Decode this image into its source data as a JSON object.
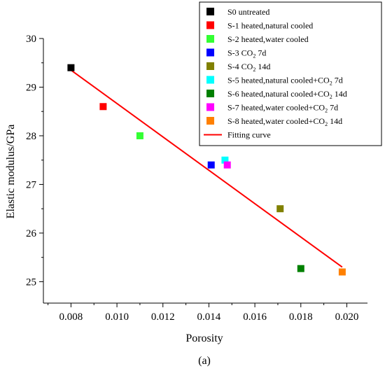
{
  "chart_data": {
    "type": "scatter",
    "xlabel": "Porosity",
    "ylabel": "Elastic modulus/GPa",
    "panel_label": "(a)",
    "xlim": [
      0.0068,
      0.0209
    ],
    "ylim": [
      24.56,
      30.0
    ],
    "xticks": [
      0.008,
      0.01,
      0.012,
      0.014,
      0.016,
      0.018,
      0.02
    ],
    "xtick_labels": [
      "0.008",
      "0.010",
      "0.012",
      "0.014",
      "0.016",
      "0.018",
      "0.020"
    ],
    "yticks": [
      25,
      26,
      27,
      28,
      29,
      30
    ],
    "ytick_labels": [
      "25",
      "26",
      "27",
      "28",
      "29",
      "30"
    ],
    "legend_position": "top-right",
    "series": [
      {
        "name": "S0  untreated",
        "color": "#000000",
        "points": [
          [
            0.008,
            29.4
          ]
        ]
      },
      {
        "name": "S-1  heated,natural cooled",
        "color": "#ff0000",
        "points": [
          [
            0.0094,
            28.6
          ]
        ]
      },
      {
        "name": "S-2  heated,water cooled",
        "color": "#33ff33",
        "points": [
          [
            0.011,
            28.0
          ]
        ]
      },
      {
        "name": "S-3  CO2 7d",
        "color": "#0000ff",
        "points": [
          [
            0.0141,
            27.4
          ]
        ]
      },
      {
        "name": "S-4  CO2 14d",
        "color": "#808000",
        "points": [
          [
            0.0171,
            26.5
          ]
        ]
      },
      {
        "name": "S-5  heated,natural cooled+CO2 7d",
        "color": "#00ffff",
        "points": [
          [
            0.0147,
            27.5
          ]
        ]
      },
      {
        "name": "S-6  heated,natural cooled+CO2 14d",
        "color": "#008000",
        "points": [
          [
            0.018,
            25.27
          ]
        ]
      },
      {
        "name": "S-7  heated,water cooled+CO2 7d",
        "color": "#ff00ff",
        "points": [
          [
            0.0148,
            27.4
          ]
        ]
      },
      {
        "name": "S-8  heated,water cooled+CO2 14d",
        "color": "#ff8000",
        "points": [
          [
            0.0198,
            25.2
          ]
        ]
      }
    ],
    "fit_line": {
      "name": "Fitting curve",
      "color": "#ff0000",
      "x": [
        0.008,
        0.0198
      ],
      "y": [
        29.35,
        25.3
      ]
    }
  }
}
